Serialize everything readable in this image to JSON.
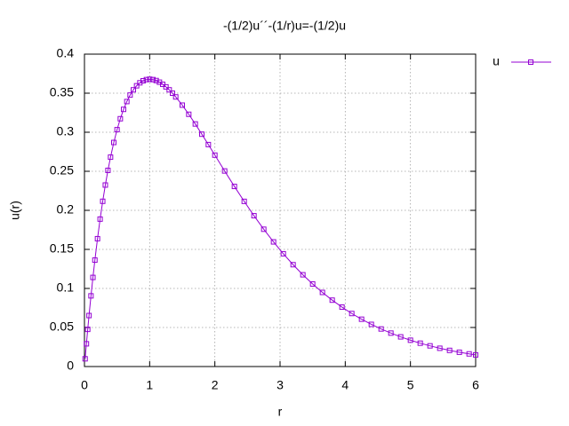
{
  "chart_data": {
    "type": "line",
    "title": "-(1/2)u´´-(1/r)u=-(1/2)u",
    "x_label": "r",
    "y_label": "u(r)",
    "x": [
      0.01,
      0.03,
      0.05,
      0.07,
      0.1,
      0.13,
      0.16,
      0.2,
      0.24,
      0.28,
      0.32,
      0.36,
      0.4,
      0.45,
      0.5,
      0.55,
      0.6,
      0.65,
      0.7,
      0.75,
      0.8,
      0.85,
      0.9,
      0.95,
      1.0,
      1.05,
      1.1,
      1.15,
      1.2,
      1.25,
      1.3,
      1.35,
      1.4,
      1.5,
      1.6,
      1.7,
      1.8,
      1.9,
      2.0,
      2.15,
      2.3,
      2.45,
      2.6,
      2.75,
      2.9,
      3.05,
      3.2,
      3.35,
      3.5,
      3.65,
      3.8,
      3.95,
      4.1,
      4.25,
      4.4,
      4.55,
      4.7,
      4.85,
      5.0,
      5.15,
      5.3,
      5.45,
      5.6,
      5.75,
      5.9,
      6.0
    ],
    "series": [
      {
        "name": "u",
        "color": "#9400d3",
        "values": [
          0.0099,
          0.0291,
          0.0476,
          0.0653,
          0.0905,
          0.1141,
          0.1363,
          0.1637,
          0.1888,
          0.2116,
          0.2324,
          0.2512,
          0.2681,
          0.2869,
          0.3033,
          0.3173,
          0.3293,
          0.3393,
          0.3476,
          0.3543,
          0.3595,
          0.3633,
          0.3659,
          0.3674,
          0.3679,
          0.3674,
          0.3662,
          0.3641,
          0.3614,
          0.3581,
          0.3543,
          0.35,
          0.3452,
          0.3347,
          0.323,
          0.3106,
          0.2975,
          0.2842,
          0.2707,
          0.2504,
          0.2306,
          0.2115,
          0.1931,
          0.1758,
          0.1596,
          0.1444,
          0.1304,
          0.1175,
          0.1057,
          0.0949,
          0.085,
          0.0761,
          0.0679,
          0.0606,
          0.054,
          0.0481,
          0.0428,
          0.038,
          0.0337,
          0.0299,
          0.0265,
          0.0234,
          0.0207,
          0.0183,
          0.0162,
          0.0149
        ]
      }
    ],
    "xlim": [
      0,
      6
    ],
    "xticks": [
      0,
      1,
      2,
      3,
      4,
      5,
      6
    ],
    "ylim": [
      0,
      0.4
    ],
    "yticks": [
      0,
      0.05,
      0.1,
      0.15,
      0.2,
      0.25,
      0.3,
      0.35,
      0.4
    ],
    "grid": true
  }
}
